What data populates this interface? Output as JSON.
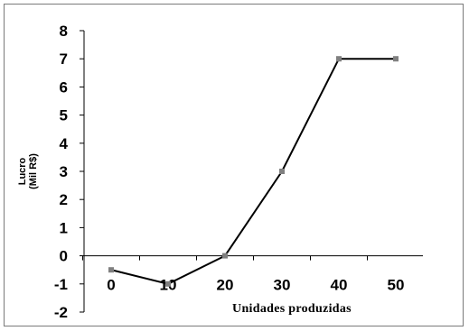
{
  "chart_data": {
    "type": "line",
    "x": [
      0,
      10,
      20,
      30,
      40,
      50
    ],
    "y": [
      -0.5,
      -1,
      0,
      3,
      7,
      7
    ],
    "xticks": [
      "0",
      "10",
      "20",
      "30",
      "40",
      "50"
    ],
    "yticks": [
      "-2",
      "-1",
      "0",
      "1",
      "2",
      "3",
      "4",
      "5",
      "6",
      "7",
      "8"
    ],
    "ylim": [
      -2,
      8
    ],
    "xlim": [
      0,
      50
    ],
    "xlabel": "Unidades produzidas",
    "ylabel_line1": "Lucro",
    "ylabel_line2": "(Mil R$)",
    "grid": false,
    "line_color": "#000000",
    "marker_color": "#808080"
  }
}
